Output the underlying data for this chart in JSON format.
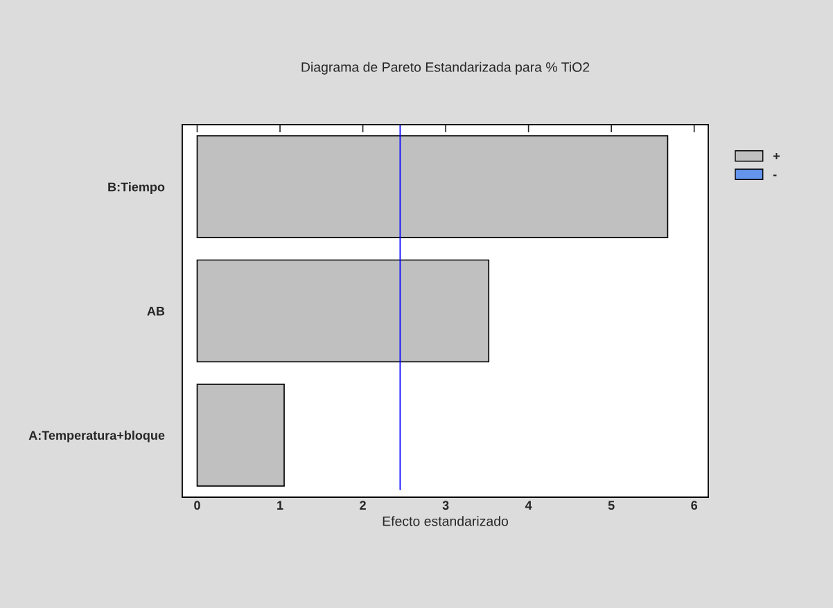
{
  "chart_data": {
    "type": "bar",
    "orientation": "horizontal",
    "title": "Diagrama de Pareto Estandarizada para % TiO2",
    "xlabel": "Efecto estandarizado",
    "categories": [
      "B:Tiempo",
      "AB",
      "A:Temperatura+bloque"
    ],
    "series": [
      {
        "name": "+",
        "color": "#c0c0c0",
        "values": [
          5.68,
          3.52,
          1.05
        ]
      },
      {
        "name": "-",
        "color": "#6495ed",
        "values": [
          null,
          null,
          null
        ]
      }
    ],
    "xlim": [
      -0.18,
      6.17
    ],
    "xticks": [
      0,
      1,
      2,
      3,
      4,
      5,
      6
    ],
    "ref_lines": [
      {
        "axis": "x",
        "value": 2.45,
        "color": "#0000ff"
      }
    ],
    "grid": false,
    "legend": "top right"
  }
}
